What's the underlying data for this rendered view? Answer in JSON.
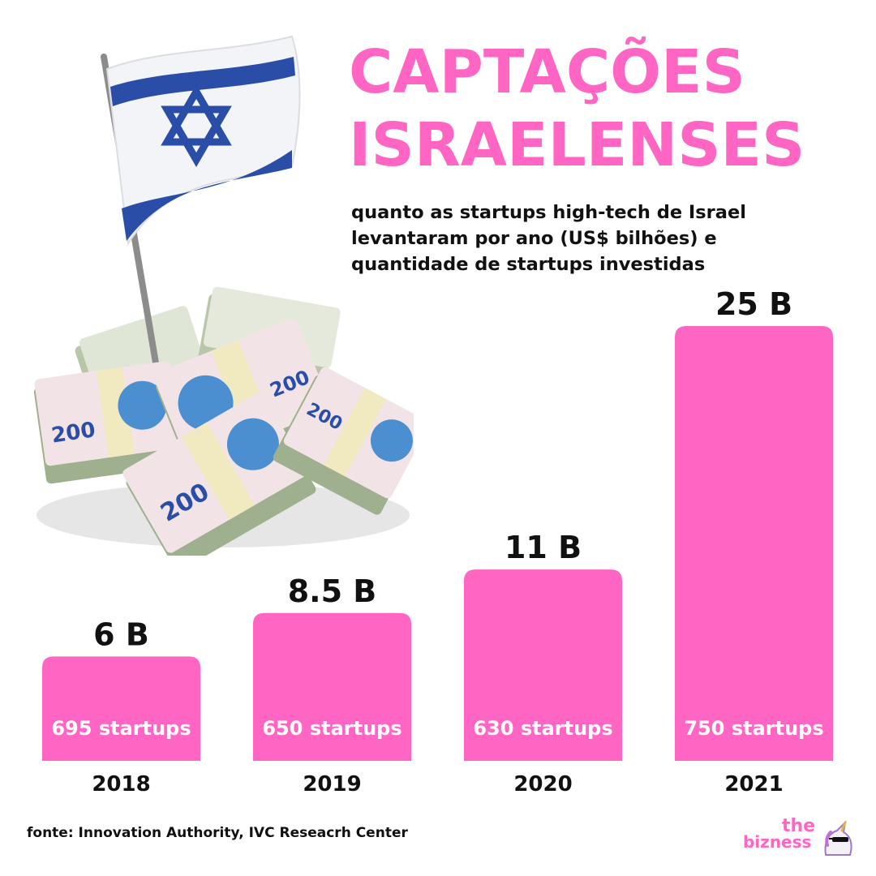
{
  "title": {
    "line1": "CAPTAÇÕES",
    "line2": "ISRAELENSES"
  },
  "subtitle": {
    "line1": "quanto as startups high-tech de Israel",
    "line2": "levantaram por ano (US$ bilhões) e",
    "line3": "quantidade de startups investidas"
  },
  "illustration": {
    "icon": "israeli-flag-on-money-stacks-icon",
    "banknote_label": "200"
  },
  "chart_data": {
    "type": "bar",
    "categories": [
      "2018",
      "2019",
      "2020",
      "2021"
    ],
    "values": [
      6,
      8.5,
      11,
      25
    ],
    "value_labels": [
      "6 B",
      "8.5 B",
      "11 B",
      "25 B"
    ],
    "inner_labels": [
      "695 startups",
      "650 startups",
      "630 startups",
      "750 startups"
    ],
    "startups": [
      695,
      650,
      630,
      750
    ],
    "ylim": [
      0,
      25
    ],
    "bar_color": "#ff66c4",
    "grid": false
  },
  "source": "fonte: Innovation Authority, IVC Reseacrh Center",
  "brand": {
    "line1": "the",
    "line2": "bizness",
    "icon": "unicorn-icon"
  },
  "colors": {
    "accent": "#ff66c4",
    "flag_blue": "#2a4ea8",
    "text": "#111111"
  }
}
